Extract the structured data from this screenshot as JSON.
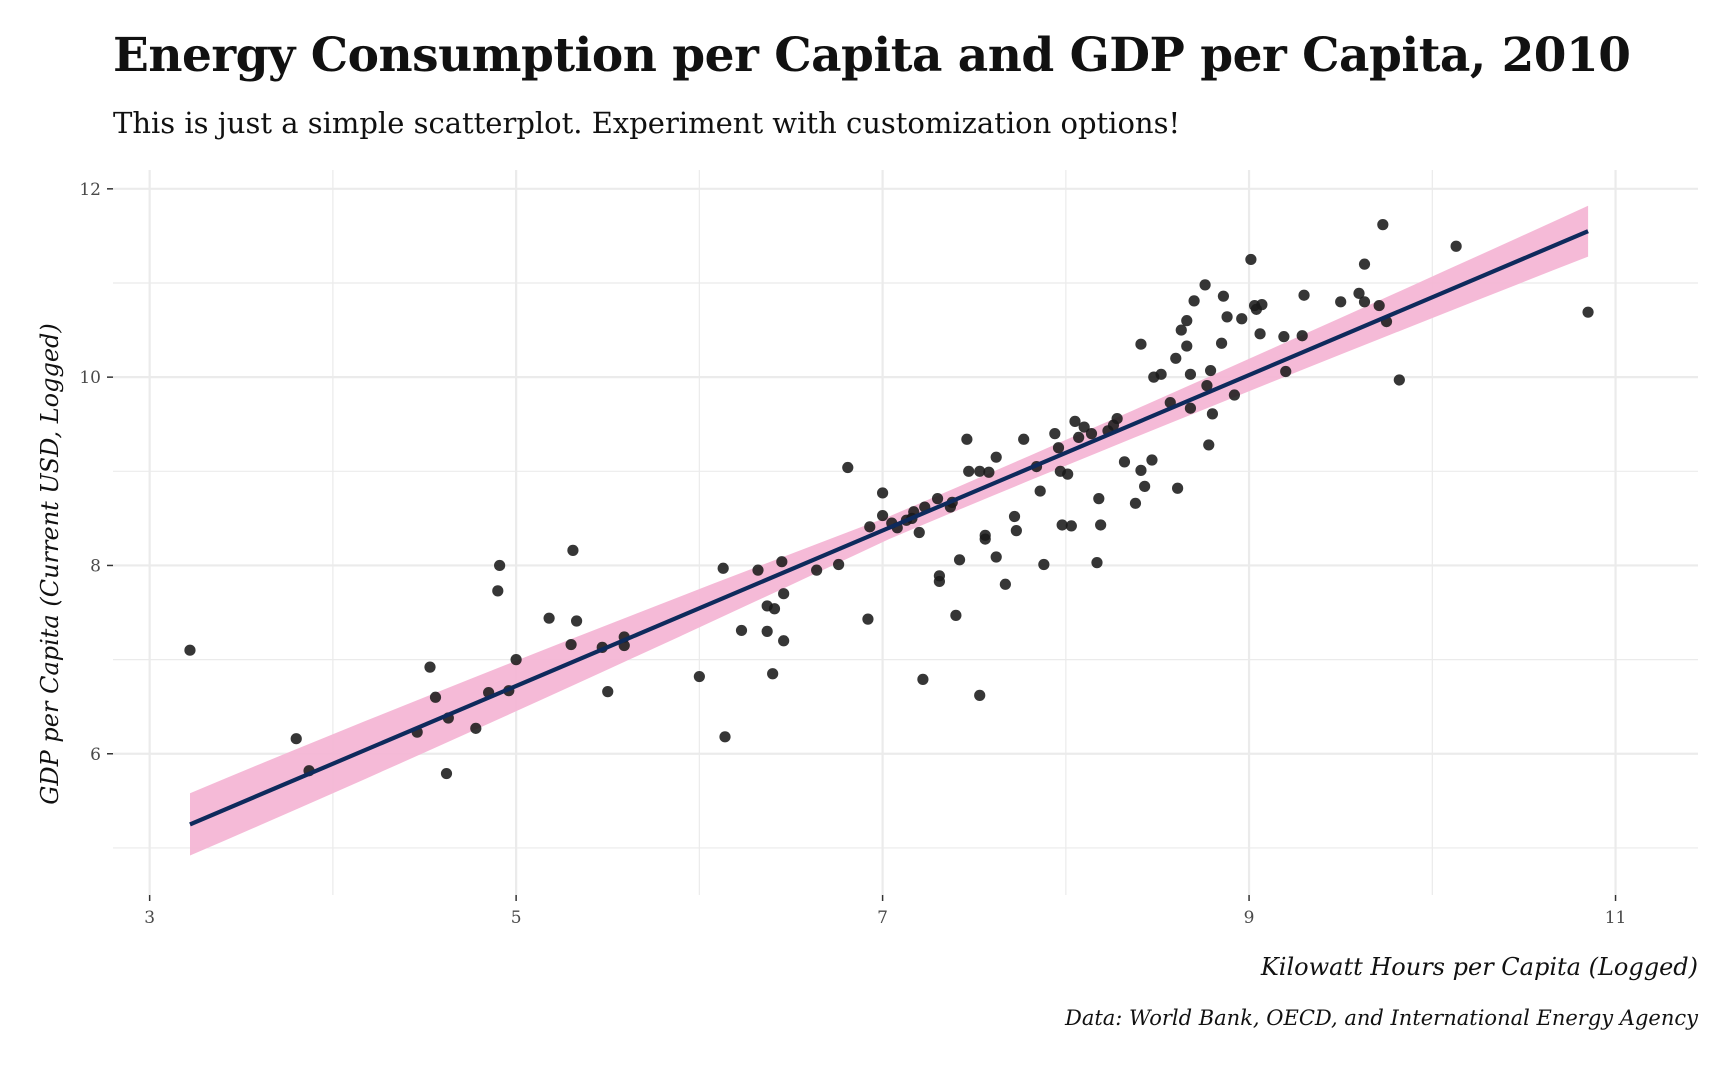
{
  "chart_data": {
    "type": "scatter",
    "title": "Energy Consumption per Capita and GDP per Capita, 2010",
    "subtitle": "This is just a simple scatterplot. Experiment with customization options!",
    "xlabel": "Kilowatt Hours per Capita (Logged)",
    "ylabel": "GDP per Capita (Current USD, Logged)",
    "caption": "Data: World Bank, OECD, and International Energy Agency",
    "xlim": [
      2.8,
      11.45
    ],
    "ylim": [
      4.5,
      12.2
    ],
    "x_ticks": [
      3,
      5,
      7,
      9,
      11
    ],
    "y_ticks": [
      6,
      8,
      10,
      12
    ],
    "grid": true,
    "colors": {
      "points": "#1a1a1a",
      "fit_line": "#0e2a5c",
      "ribbon": "#f4b6d5",
      "grid": "#ebebeb"
    },
    "fit": {
      "x_start": 3.22,
      "y_start": 5.25,
      "x_end": 10.85,
      "y_end": 11.55,
      "band_start": 0.33,
      "band_mid": 0.12,
      "band_end": 0.27
    },
    "points": [
      [
        3.22,
        7.1
      ],
      [
        3.8,
        6.16
      ],
      [
        3.87,
        5.82
      ],
      [
        4.46,
        6.23
      ],
      [
        4.53,
        6.92
      ],
      [
        4.56,
        6.6
      ],
      [
        4.62,
        5.79
      ],
      [
        4.63,
        6.38
      ],
      [
        4.78,
        6.27
      ],
      [
        4.85,
        6.65
      ],
      [
        4.9,
        7.73
      ],
      [
        4.91,
        8.0
      ],
      [
        4.96,
        6.67
      ],
      [
        5.0,
        7.0
      ],
      [
        5.18,
        7.44
      ],
      [
        5.3,
        7.16
      ],
      [
        5.31,
        8.16
      ],
      [
        5.33,
        7.41
      ],
      [
        5.47,
        7.13
      ],
      [
        5.5,
        6.66
      ],
      [
        5.59,
        7.24
      ],
      [
        5.59,
        7.15
      ],
      [
        6.0,
        6.82
      ],
      [
        6.13,
        7.97
      ],
      [
        6.14,
        6.18
      ],
      [
        6.23,
        7.31
      ],
      [
        6.32,
        7.95
      ],
      [
        6.37,
        7.57
      ],
      [
        6.37,
        7.3
      ],
      [
        6.4,
        6.85
      ],
      [
        6.41,
        7.54
      ],
      [
        6.45,
        8.04
      ],
      [
        6.46,
        7.7
      ],
      [
        6.46,
        7.2
      ],
      [
        6.64,
        7.95
      ],
      [
        6.76,
        8.01
      ],
      [
        6.81,
        9.04
      ],
      [
        6.92,
        7.43
      ],
      [
        6.93,
        8.41
      ],
      [
        7.0,
        8.53
      ],
      [
        7.0,
        8.77
      ],
      [
        7.05,
        8.45
      ],
      [
        7.08,
        8.4
      ],
      [
        7.13,
        8.48
      ],
      [
        7.16,
        8.5
      ],
      [
        7.17,
        8.57
      ],
      [
        7.2,
        8.35
      ],
      [
        7.22,
        6.79
      ],
      [
        7.23,
        8.62
      ],
      [
        7.3,
        8.71
      ],
      [
        7.31,
        7.83
      ],
      [
        7.31,
        7.89
      ],
      [
        7.37,
        8.62
      ],
      [
        7.38,
        8.67
      ],
      [
        7.4,
        7.47
      ],
      [
        7.42,
        8.06
      ],
      [
        7.46,
        9.34
      ],
      [
        7.47,
        9.0
      ],
      [
        7.53,
        9.0
      ],
      [
        7.53,
        6.62
      ],
      [
        7.56,
        8.28
      ],
      [
        7.56,
        8.32
      ],
      [
        7.58,
        8.99
      ],
      [
        7.62,
        8.09
      ],
      [
        7.62,
        9.15
      ],
      [
        7.67,
        7.8
      ],
      [
        7.72,
        8.52
      ],
      [
        7.73,
        8.37
      ],
      [
        7.77,
        9.34
      ],
      [
        7.84,
        9.05
      ],
      [
        7.86,
        8.79
      ],
      [
        7.88,
        8.01
      ],
      [
        7.94,
        9.4
      ],
      [
        7.96,
        9.25
      ],
      [
        7.97,
        9.0
      ],
      [
        7.98,
        8.43
      ],
      [
        8.01,
        8.97
      ],
      [
        8.03,
        8.42
      ],
      [
        8.05,
        9.53
      ],
      [
        8.07,
        9.36
      ],
      [
        8.1,
        9.47
      ],
      [
        8.14,
        9.4
      ],
      [
        8.17,
        8.03
      ],
      [
        8.18,
        8.71
      ],
      [
        8.19,
        8.43
      ],
      [
        8.23,
        9.43
      ],
      [
        8.26,
        9.49
      ],
      [
        8.28,
        9.56
      ],
      [
        8.32,
        9.1
      ],
      [
        8.38,
        8.66
      ],
      [
        8.41,
        10.35
      ],
      [
        8.41,
        9.01
      ],
      [
        8.43,
        8.84
      ],
      [
        8.47,
        9.12
      ],
      [
        8.48,
        10.0
      ],
      [
        8.52,
        10.03
      ],
      [
        8.57,
        9.73
      ],
      [
        8.6,
        10.2
      ],
      [
        8.61,
        8.82
      ],
      [
        8.63,
        10.5
      ],
      [
        8.66,
        10.6
      ],
      [
        8.66,
        10.33
      ],
      [
        8.68,
        9.67
      ],
      [
        8.68,
        10.03
      ],
      [
        8.7,
        10.81
      ],
      [
        8.76,
        10.98
      ],
      [
        8.77,
        9.91
      ],
      [
        8.78,
        9.28
      ],
      [
        8.79,
        10.07
      ],
      [
        8.8,
        9.61
      ],
      [
        8.85,
        10.36
      ],
      [
        8.86,
        10.86
      ],
      [
        8.88,
        10.64
      ],
      [
        8.92,
        9.81
      ],
      [
        8.96,
        10.62
      ],
      [
        9.01,
        11.25
      ],
      [
        9.03,
        10.76
      ],
      [
        9.04,
        10.72
      ],
      [
        9.06,
        10.46
      ],
      [
        9.07,
        10.77
      ],
      [
        9.19,
        10.43
      ],
      [
        9.2,
        10.06
      ],
      [
        9.29,
        10.44
      ],
      [
        9.3,
        10.87
      ],
      [
        9.5,
        10.8
      ],
      [
        9.6,
        10.89
      ],
      [
        9.63,
        11.2
      ],
      [
        9.63,
        10.8
      ],
      [
        9.71,
        10.76
      ],
      [
        9.73,
        11.62
      ],
      [
        9.75,
        10.59
      ],
      [
        9.82,
        9.97
      ],
      [
        10.13,
        11.39
      ],
      [
        10.85,
        10.69
      ]
    ]
  }
}
